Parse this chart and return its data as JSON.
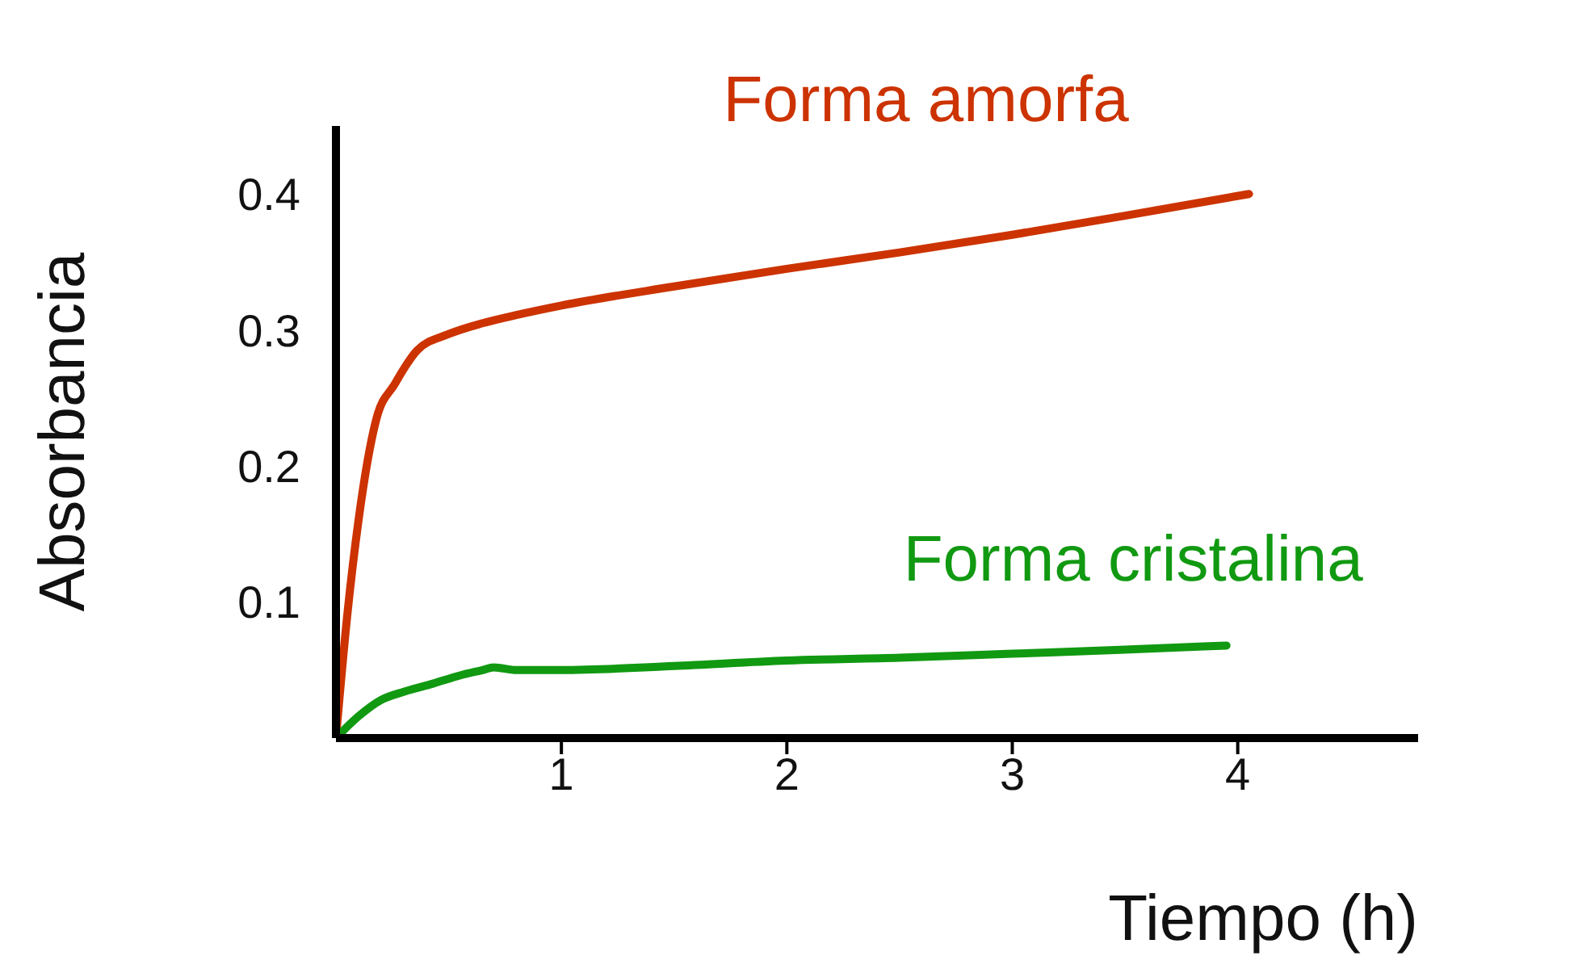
{
  "chart_data": {
    "type": "line",
    "xlabel": "Tiempo (h)",
    "ylabel": "Absorbancia",
    "xlim": [
      0,
      4.8
    ],
    "xticks": [
      1,
      2,
      3,
      4
    ],
    "ylim": [
      0,
      0.45
    ],
    "yticks": [
      0.1,
      0.2,
      0.3,
      0.4
    ],
    "grid": false,
    "legend": false,
    "marker": "none",
    "line_style": "solid",
    "series": [
      {
        "name": "Forma amorfa",
        "color": "#cc3300",
        "x": [
          0,
          0.05,
          0.1,
          0.18,
          0.26,
          0.36,
          0.5,
          0.65,
          0.8,
          1,
          1.5,
          2,
          2.5,
          3,
          3.5,
          4.05
        ],
        "values": [
          0,
          0.09,
          0.16,
          0.235,
          0.26,
          0.285,
          0.297,
          0.305,
          0.311,
          0.318,
          0.332,
          0.345,
          0.357,
          0.37,
          0.384,
          0.4
        ]
      },
      {
        "name": "Forma cristalina",
        "color": "#119911",
        "x": [
          0,
          0.1,
          0.2,
          0.3,
          0.43,
          0.55,
          0.65,
          0.7,
          0.8,
          1,
          1.5,
          2,
          2.5,
          3,
          3.5,
          3.95
        ],
        "values": [
          0,
          0.016,
          0.028,
          0.034,
          0.04,
          0.046,
          0.05,
          0.052,
          0.05,
          0.05,
          0.053,
          0.057,
          0.059,
          0.062,
          0.065,
          0.068
        ]
      }
    ]
  }
}
